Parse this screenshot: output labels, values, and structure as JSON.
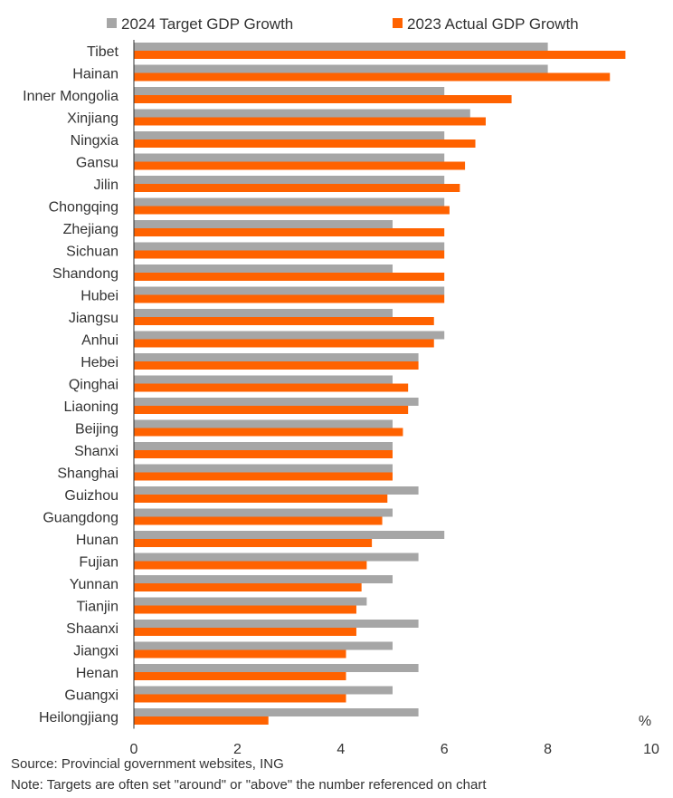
{
  "chart_data": {
    "type": "bar",
    "orientation": "horizontal",
    "categories": [
      "Tibet",
      "Hainan",
      "Inner Mongolia",
      "Xinjiang",
      "Ningxia",
      "Gansu",
      "Jilin",
      "Chongqing",
      "Zhejiang",
      "Sichuan",
      "Shandong",
      "Hubei",
      "Jiangsu",
      "Anhui",
      "Hebei",
      "Qinghai",
      "Liaoning",
      "Beijing",
      "Shanxi",
      "Shanghai",
      "Guizhou",
      "Guangdong",
      "Hunan",
      "Fujian",
      "Yunnan",
      "Tianjin",
      "Shaanxi",
      "Jiangxi",
      "Henan",
      "Guangxi",
      "Heilongjiang"
    ],
    "series": [
      {
        "name": "2024 Target GDP Growth",
        "color": "#a6a6a6",
        "values": [
          8,
          8,
          6,
          6.5,
          6,
          6,
          6,
          6,
          5,
          6,
          5,
          6,
          5,
          6,
          5.5,
          5,
          5.5,
          5,
          5,
          5,
          5.5,
          5,
          6,
          5.5,
          5,
          4.5,
          5.5,
          5,
          5.5,
          5,
          5.5
        ]
      },
      {
        "name": "2023 Actual GDP Growth",
        "color": "#ff6200",
        "values": [
          9.5,
          9.2,
          7.3,
          6.8,
          6.6,
          6.4,
          6.3,
          6.1,
          6,
          6,
          6,
          6,
          5.8,
          5.8,
          5.5,
          5.3,
          5.3,
          5.2,
          5,
          5,
          4.9,
          4.8,
          4.6,
          4.5,
          4.4,
          4.3,
          4.3,
          4.1,
          4.1,
          4.1,
          2.6
        ]
      }
    ],
    "xlim": [
      0,
      10
    ],
    "xticks": [
      0,
      2,
      4,
      6,
      8,
      10
    ],
    "unit_label": "%",
    "legend_position": "top",
    "grid": false
  },
  "footer": {
    "source": "Source: Provincial government websites, ING",
    "note": "Note: Targets are often set \"around\" or \"above\" the number referenced on chart"
  }
}
